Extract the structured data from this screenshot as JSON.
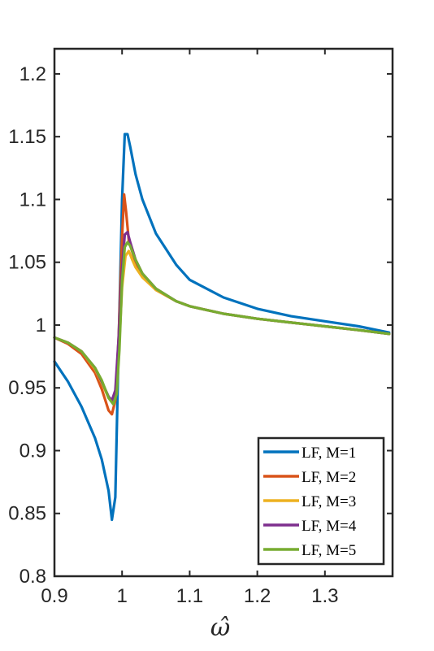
{
  "chart_data": {
    "type": "line",
    "xlabel": "ω̂",
    "ylabel": "",
    "title": "",
    "xlim": [
      0.9,
      1.4
    ],
    "ylim": [
      0.8,
      1.22
    ],
    "xticks": [
      0.9,
      1.0,
      1.1,
      1.2,
      1.3
    ],
    "xtick_labels": [
      "0.9",
      "1",
      "1.1",
      "1.2",
      "1.3"
    ],
    "yticks": [
      0.8,
      0.85,
      0.9,
      0.95,
      1.0,
      1.05,
      1.1,
      1.15,
      1.2
    ],
    "ytick_labels": [
      "0.8",
      "0.85",
      "0.9",
      "0.95",
      "1",
      "1.05",
      "1.1",
      "1.15",
      "1.2"
    ],
    "grid": false,
    "legend_position": "bottom-right",
    "series": [
      {
        "name": "LF, M=1",
        "color": "#0072BD",
        "x": [
          0.9,
          0.92,
          0.94,
          0.96,
          0.97,
          0.98,
          0.985,
          0.99,
          0.995,
          1.0,
          1.004,
          1.008,
          1.012,
          1.02,
          1.03,
          1.05,
          1.08,
          1.1,
          1.15,
          1.2,
          1.25,
          1.3,
          1.35,
          1.395
        ],
        "y": [
          0.971,
          0.955,
          0.935,
          0.91,
          0.893,
          0.868,
          0.845,
          0.863,
          0.985,
          1.1,
          1.152,
          1.152,
          1.142,
          1.12,
          1.1,
          1.073,
          1.048,
          1.036,
          1.022,
          1.013,
          1.007,
          1.003,
          0.999,
          0.994
        ]
      },
      {
        "name": "LF, M=2",
        "color": "#D95319",
        "x": [
          0.9,
          0.92,
          0.94,
          0.96,
          0.97,
          0.98,
          0.985,
          0.99,
          0.995,
          1.0,
          1.003,
          1.006,
          1.01,
          1.02,
          1.03,
          1.05,
          1.08,
          1.1,
          1.15,
          1.2,
          1.25,
          1.3,
          1.35,
          1.395
        ],
        "y": [
          0.99,
          0.985,
          0.977,
          0.962,
          0.949,
          0.932,
          0.929,
          0.94,
          0.99,
          1.07,
          1.104,
          1.09,
          1.067,
          1.05,
          1.04,
          1.028,
          1.019,
          1.015,
          1.009,
          1.005,
          1.002,
          0.999,
          0.996,
          0.993
        ]
      },
      {
        "name": "LF, M=3",
        "color": "#EDB120",
        "x": [
          0.9,
          0.92,
          0.94,
          0.96,
          0.97,
          0.98,
          0.986,
          0.99,
          0.995,
          1.0,
          1.005,
          1.01,
          1.015,
          1.02,
          1.03,
          1.05,
          1.08,
          1.1,
          1.15,
          1.2,
          1.25,
          1.3,
          1.35,
          1.395
        ],
        "y": [
          0.99,
          0.986,
          0.979,
          0.965,
          0.954,
          0.942,
          0.939,
          0.945,
          0.975,
          1.03,
          1.055,
          1.059,
          1.052,
          1.046,
          1.038,
          1.028,
          1.019,
          1.015,
          1.009,
          1.005,
          1.002,
          0.999,
          0.996,
          0.993
        ]
      },
      {
        "name": "LF, M=4",
        "color": "#7E2F8E",
        "x": [
          0.9,
          0.92,
          0.94,
          0.96,
          0.97,
          0.98,
          0.985,
          0.99,
          0.995,
          1.0,
          1.004,
          1.008,
          1.012,
          1.02,
          1.03,
          1.05,
          1.08,
          1.1,
          1.15,
          1.2,
          1.25,
          1.3,
          1.35,
          1.395
        ],
        "y": [
          0.99,
          0.986,
          0.979,
          0.966,
          0.955,
          0.943,
          0.94,
          0.948,
          0.99,
          1.045,
          1.072,
          1.074,
          1.066,
          1.052,
          1.041,
          1.029,
          1.019,
          1.015,
          1.009,
          1.005,
          1.002,
          0.999,
          0.996,
          0.993
        ]
      },
      {
        "name": "LF, M=5",
        "color": "#77AC30",
        "x": [
          0.9,
          0.92,
          0.94,
          0.96,
          0.97,
          0.98,
          0.987,
          0.992,
          0.996,
          1.0,
          1.004,
          1.008,
          1.012,
          1.02,
          1.03,
          1.05,
          1.08,
          1.1,
          1.15,
          1.2,
          1.25,
          1.3,
          1.35,
          1.395
        ],
        "y": [
          0.99,
          0.986,
          0.979,
          0.966,
          0.956,
          0.942,
          0.937,
          0.945,
          0.98,
          1.035,
          1.062,
          1.066,
          1.063,
          1.052,
          1.041,
          1.029,
          1.019,
          1.015,
          1.009,
          1.005,
          1.002,
          0.999,
          0.996,
          0.993
        ]
      }
    ]
  }
}
